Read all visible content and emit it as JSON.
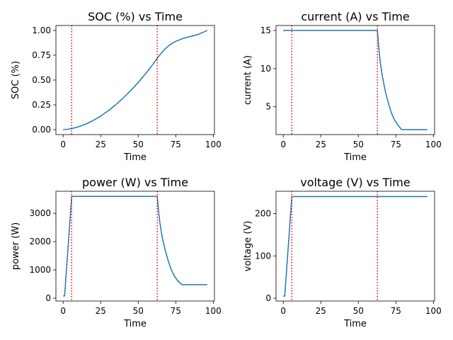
{
  "chart_data": [
    {
      "type": "line",
      "title": "SOC (%) vs Time",
      "xlabel": "Time",
      "ylabel": "SOC (%)",
      "xlim": [
        -4.8,
        100.8
      ],
      "ylim": [
        -0.05,
        1.05
      ],
      "xticks": [
        0,
        25,
        50,
        75,
        100
      ],
      "yticks": [
        0.0,
        0.25,
        0.5,
        0.75,
        1.0
      ],
      "ytick_labels": [
        "0.00",
        "0.25",
        "0.50",
        "0.75",
        "1.00"
      ],
      "series_color": "#1f77b4",
      "marker_color": "#ff0000",
      "vlines": [
        5.7,
        62.7
      ],
      "points": [
        [
          0,
          0.0
        ],
        [
          3,
          0.004
        ],
        [
          5.7,
          0.011
        ],
        [
          10,
          0.027
        ],
        [
          15,
          0.055
        ],
        [
          20,
          0.092
        ],
        [
          25,
          0.137
        ],
        [
          30,
          0.19
        ],
        [
          35,
          0.25
        ],
        [
          40,
          0.318
        ],
        [
          45,
          0.393
        ],
        [
          50,
          0.475
        ],
        [
          55,
          0.565
        ],
        [
          60,
          0.662
        ],
        [
          62.7,
          0.72
        ],
        [
          65,
          0.765
        ],
        [
          68,
          0.815
        ],
        [
          71,
          0.855
        ],
        [
          75,
          0.89
        ],
        [
          80,
          0.92
        ],
        [
          85,
          0.94
        ],
        [
          90,
          0.96
        ],
        [
          93,
          0.98
        ],
        [
          96,
          1.0
        ]
      ]
    },
    {
      "type": "line",
      "title": "current (A) vs Time",
      "xlabel": "Time",
      "ylabel": "current (A)",
      "xlim": [
        -4.8,
        100.8
      ],
      "ylim": [
        1.35,
        15.65
      ],
      "xticks": [
        0,
        25,
        50,
        75,
        100
      ],
      "yticks": [
        5,
        10,
        15
      ],
      "ytick_labels": [
        "5",
        "10",
        "15"
      ],
      "series_color": "#1f77b4",
      "marker_color": "#ff0000",
      "vlines": [
        5.7,
        62.7
      ],
      "points": [
        [
          0,
          15
        ],
        [
          62.7,
          15
        ],
        [
          63.5,
          13
        ],
        [
          64.5,
          11
        ],
        [
          66,
          9
        ],
        [
          68,
          7
        ],
        [
          70,
          5.5
        ],
        [
          72,
          4.2
        ],
        [
          74,
          3.3
        ],
        [
          76,
          2.7
        ],
        [
          78,
          2.2
        ],
        [
          79,
          2.0
        ],
        [
          96,
          2.0
        ]
      ]
    },
    {
      "type": "line",
      "title": "power (W) vs Time",
      "xlabel": "Time",
      "ylabel": "power (W)",
      "xlim": [
        -4.8,
        100.8
      ],
      "ylim": [
        -100,
        3780
      ],
      "xticks": [
        0,
        25,
        50,
        75,
        100
      ],
      "yticks": [
        0,
        1000,
        2000,
        3000
      ],
      "ytick_labels": [
        "0",
        "1000",
        "2000",
        "3000"
      ],
      "series_color": "#1f77b4",
      "marker_color": "#ff0000",
      "vlines": [
        5.7,
        62.7
      ],
      "points": [
        [
          0,
          80
        ],
        [
          1,
          80
        ],
        [
          5.7,
          3600
        ],
        [
          62.7,
          3600
        ],
        [
          63.5,
          3100
        ],
        [
          64.5,
          2650
        ],
        [
          66,
          2150
        ],
        [
          68,
          1700
        ],
        [
          70,
          1320
        ],
        [
          72,
          1010
        ],
        [
          74,
          790
        ],
        [
          76,
          640
        ],
        [
          78,
          530
        ],
        [
          79,
          480
        ],
        [
          96,
          480
        ]
      ]
    },
    {
      "type": "line",
      "title": "voltage (V) vs Time",
      "xlabel": "Time",
      "ylabel": "voltage (V)",
      "xlim": [
        -4.8,
        100.8
      ],
      "ylim": [
        -6.5,
        252.5
      ],
      "xticks": [
        0,
        25,
        50,
        75,
        100
      ],
      "yticks": [
        0,
        100,
        200
      ],
      "ytick_labels": [
        "0",
        "100",
        "200"
      ],
      "series_color": "#1f77b4",
      "marker_color": "#ff0000",
      "vlines": [
        5.7,
        62.7
      ],
      "points": [
        [
          0,
          5.3
        ],
        [
          1,
          5.3
        ],
        [
          5.7,
          240
        ],
        [
          96,
          240
        ]
      ]
    }
  ]
}
